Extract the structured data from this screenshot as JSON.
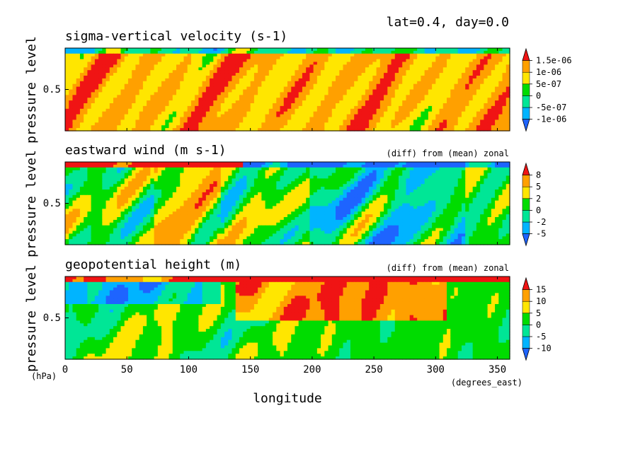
{
  "header": "lat=0.4, day=0.0",
  "chart_data": [
    {
      "type": "heatmap",
      "title": "sigma-vertical velocity (s-1)",
      "note": "",
      "ylabel": "pressure level",
      "yticks": [
        "0.5"
      ],
      "colorbar": {
        "labels": [
          "1.5e-06",
          "1e-06",
          "5e-07",
          "0",
          "-5e-07",
          "-1e-06"
        ],
        "colors": [
          "#1e64ff",
          "#00b4ff",
          "#00e696",
          "#00dc00",
          "#ffe600",
          "#ffa000",
          "#f01414"
        ]
      },
      "dominant_colors": [
        "#f01414",
        "#1e64ff"
      ],
      "seed": 11
    },
    {
      "type": "heatmap",
      "title": "eastward wind (m s-1)",
      "note": "(diff) from (mean) zonal",
      "ylabel": "pressure level",
      "yticks": [
        "0.5"
      ],
      "colorbar": {
        "labels": [
          "8",
          "5",
          "2",
          "0",
          "-2",
          "-5"
        ],
        "colors": [
          "#1e64ff",
          "#00b4ff",
          "#00e696",
          "#00dc00",
          "#ffe600",
          "#ffa000",
          "#f01414"
        ]
      },
      "seed": 23
    },
    {
      "type": "heatmap",
      "title": "geopotential height (m)",
      "note": "(diff) from (mean) zonal",
      "ylabel": "pressure level",
      "yticks": [
        "0.5"
      ],
      "colorbar": {
        "labels": [
          "15",
          "10",
          "5",
          "0",
          "-5",
          "-10"
        ],
        "colors": [
          "#1e64ff",
          "#00b4ff",
          "#00e696",
          "#00dc00",
          "#ffe600",
          "#ffa000",
          "#f01414"
        ]
      },
      "seed": 37
    }
  ],
  "x_axis": {
    "ticks": [
      "0",
      "50",
      "100",
      "150",
      "200",
      "250",
      "300",
      "350"
    ],
    "tick_values": [
      0,
      50,
      100,
      150,
      200,
      250,
      300,
      350
    ],
    "xlim": [
      0,
      360
    ],
    "label": "longitude",
    "unit": "(degrees_east)",
    "y_unit": "(hPa)"
  }
}
